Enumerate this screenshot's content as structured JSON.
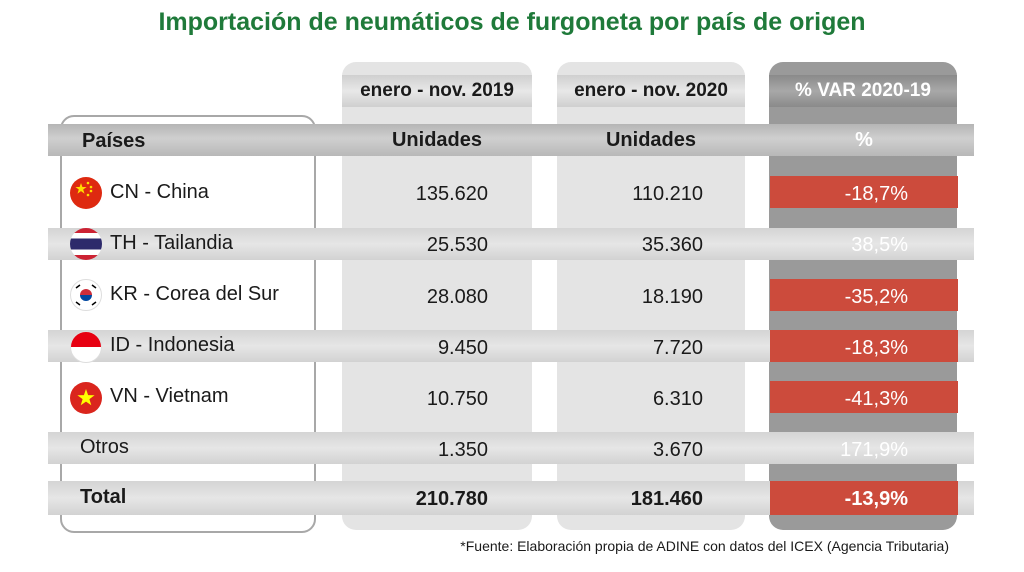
{
  "title": "Importación de neumáticos de furgoneta por país de origen",
  "period_2019": "enero - nov. 2019",
  "period_2020": "enero - nov. 2020",
  "var_header": "% VAR 2020-19",
  "col_country": "Países",
  "col_units_2019": "Unidades",
  "col_units_2020": "Unidades",
  "col_pct": "%",
  "rows": [
    {
      "country": "CN - China",
      "u2019": "135.620",
      "u2020": "110.210",
      "var": "-18,7%",
      "flag": "china-flag-icon"
    },
    {
      "country": "TH - Tailandia",
      "u2019": "25.530",
      "u2020": "35.360",
      "var": "38,5%",
      "flag": "thailand-flag-icon"
    },
    {
      "country": "KR - Corea del Sur",
      "u2019": "28.080",
      "u2020": "18.190",
      "var": "-35,2%",
      "flag": "korea-flag-icon"
    },
    {
      "country": "ID - Indonesia",
      "u2019": "9.450",
      "u2020": "7.720",
      "var": "-18,3%",
      "flag": "indonesia-flag-icon"
    },
    {
      "country": "VN - Vietnam",
      "u2019": "10.750",
      "u2020": "6.310",
      "var": "-41,3%",
      "flag": "vietnam-flag-icon"
    },
    {
      "country": "Otros",
      "u2019": "1.350",
      "u2020": "3.670",
      "var": "171,9%"
    }
  ],
  "total": {
    "label": "Total",
    "u2019": "210.780",
    "u2020": "181.460",
    "var": "-13,9%"
  },
  "source": "*Fuente: Elaboración propia de ADINE con datos del ICEX (Agencia Tributaria)",
  "colors": {
    "title": "#1f7a3a",
    "negative": "#cc4b3c"
  },
  "chart_data": {
    "type": "table",
    "title": "Importación de neumáticos de furgoneta por país de origen",
    "columns": [
      "Países",
      "enero - nov. 2019 (Unidades)",
      "enero - nov. 2020 (Unidades)",
      "% VAR 2020-19"
    ],
    "categories": [
      "CN - China",
      "TH - Tailandia",
      "KR - Corea del Sur",
      "ID - Indonesia",
      "VN - Vietnam",
      "Otros",
      "Total"
    ],
    "series": [
      {
        "name": "enero - nov. 2019",
        "values": [
          135620,
          25530,
          28080,
          9450,
          10750,
          1350,
          210780
        ]
      },
      {
        "name": "enero - nov. 2020",
        "values": [
          110210,
          35360,
          18190,
          7720,
          6310,
          3670,
          181460
        ]
      },
      {
        "name": "% VAR 2020-19",
        "values": [
          -18.7,
          38.5,
          -35.2,
          -18.3,
          -41.3,
          171.9,
          -13.9
        ]
      }
    ]
  }
}
